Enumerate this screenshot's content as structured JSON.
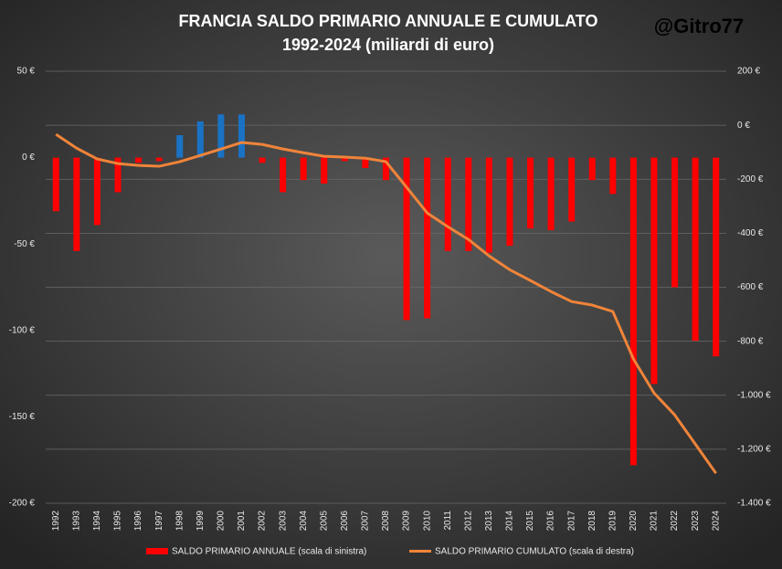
{
  "chart_data": {
    "type": "bar_line",
    "title": "FRANCIA SALDO PRIMARIO ANNUALE E CUMULATO",
    "subtitle": "1992-2024 (miliardi di euro)",
    "watermark": "@Gitro77",
    "categories": [
      "1992",
      "1993",
      "1994",
      "1995",
      "1996",
      "1997",
      "1998",
      "1999",
      "2000",
      "2001",
      "2002",
      "2003",
      "2004",
      "2005",
      "2006",
      "2007",
      "2008",
      "2009",
      "2010",
      "2011",
      "2012",
      "2013",
      "2014",
      "2015",
      "2016",
      "2017",
      "2018",
      "2019",
      "2020",
      "2021",
      "2022",
      "2023",
      "2024"
    ],
    "series": [
      {
        "name": "SALDO PRIMARIO ANNUALE (scala di sinistra)",
        "type": "bar",
        "color": "#ff0000",
        "positive_color": "#1a72c4",
        "axis": "y",
        "values": [
          -31,
          -54,
          -39,
          -20,
          -3,
          -2,
          13,
          21,
          25,
          25,
          -3,
          -20,
          -13,
          -15,
          -2,
          -6,
          -13,
          -94,
          -93,
          -54,
          -54,
          -55,
          -51,
          -41,
          -42,
          -37,
          -13,
          -21,
          -178,
          -131,
          -75,
          -106,
          -115
        ]
      },
      {
        "name": "SALDO PRIMARIO CUMULATO (scala di destra)",
        "type": "line",
        "color": "#f0843a",
        "axis": "y2",
        "values": [
          -34,
          -85,
          -125,
          -142,
          -149,
          -152,
          -135,
          -112,
          -88,
          -64,
          -71,
          -88,
          -102,
          -115,
          -118,
          -122,
          -135,
          -230,
          -325,
          -376,
          -423,
          -484,
          -535,
          -575,
          -616,
          -653,
          -666,
          -690,
          -866,
          -992,
          -1073,
          -1181,
          -1289
        ]
      }
    ],
    "ylim": [
      -200,
      50
    ],
    "yticks": [
      {
        "value": -200,
        "label": "-200 €"
      },
      {
        "value": -150,
        "label": "-150 €"
      },
      {
        "value": -100,
        "label": "-100 €"
      },
      {
        "value": -50,
        "label": "-50 €"
      },
      {
        "value": 0,
        "label": "0 €"
      },
      {
        "value": 50,
        "label": "50 €"
      }
    ],
    "y2lim": [
      -1400,
      200
    ],
    "y2ticks": [
      {
        "value": -1400,
        "label": "-1.400 €"
      },
      {
        "value": -1200,
        "label": "-1.200 €"
      },
      {
        "value": -1000,
        "label": "-1.000 €"
      },
      {
        "value": -800,
        "label": "-800 €"
      },
      {
        "value": -600,
        "label": "-600 €"
      },
      {
        "value": -400,
        "label": "-400 €"
      },
      {
        "value": -200,
        "label": "-200 €"
      },
      {
        "value": 0,
        "label": "0 €"
      },
      {
        "value": 200,
        "label": "200 €"
      }
    ],
    "grid": true
  }
}
